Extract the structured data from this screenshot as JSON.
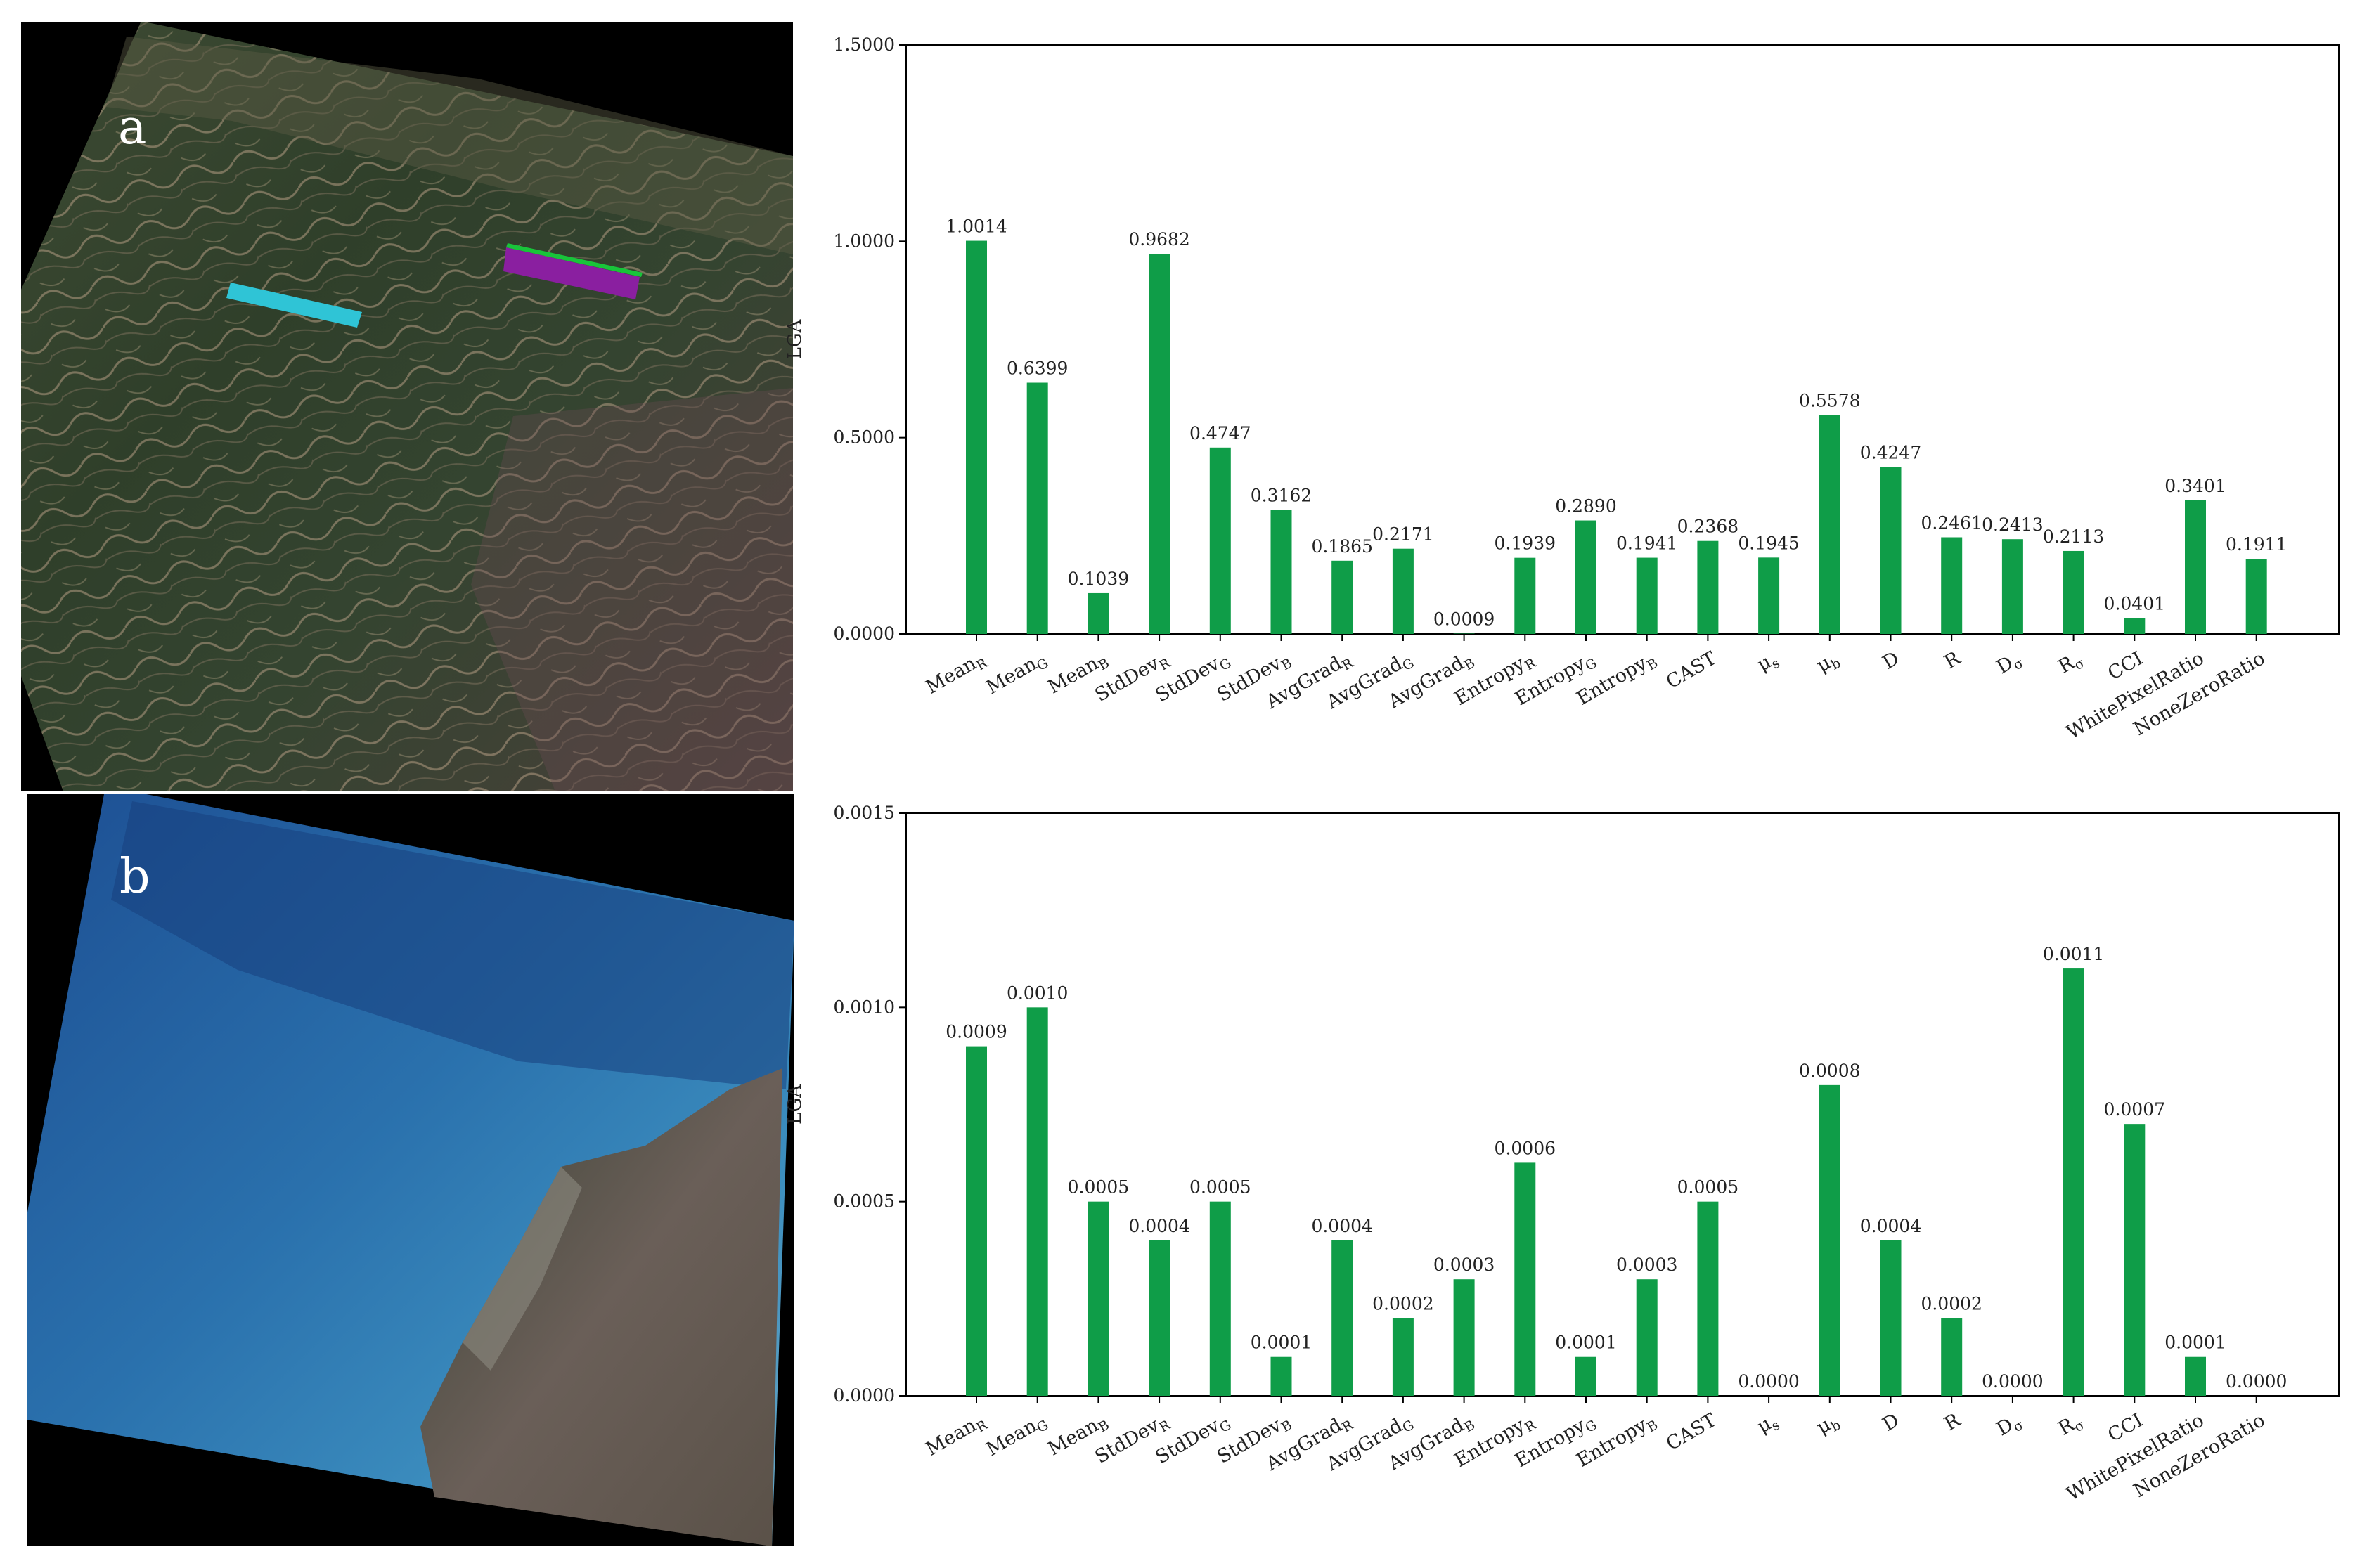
{
  "panel_a": {
    "label": "a"
  },
  "panel_b": {
    "label": "b"
  },
  "colors": {
    "bar": "#0f9d48",
    "axis": "#000000",
    "cyan_strip": "#2fc4d6",
    "magenta_strip": "#8a1fa0",
    "green_strip": "#18c43a"
  },
  "chart_data": [
    {
      "type": "bar",
      "ylabel": "LGA",
      "ylim": [
        0,
        1.5
      ],
      "yticks": [
        "0.0000",
        "0.5000",
        "1.0000",
        "1.5000"
      ],
      "categories": [
        "MeanR",
        "MeanG",
        "MeanB",
        "StdDevR",
        "StdDevG",
        "StdDevB",
        "AvgGradR",
        "AvgGradG",
        "AvgGradB",
        "EntropyR",
        "EntropyG",
        "EntropyB",
        "CAST",
        "μs",
        "μb",
        "D",
        "R",
        "Dσ",
        "Rσ",
        "CCI",
        "WhitePixelRatio",
        "NoneZeroRatio"
      ],
      "values": [
        1.0014,
        0.6399,
        0.1039,
        0.9682,
        0.4747,
        0.3162,
        0.1865,
        0.2171,
        0.0009,
        0.1939,
        0.289,
        0.1941,
        0.2368,
        0.1945,
        0.5578,
        0.4247,
        0.2461,
        0.2413,
        0.2113,
        0.0401,
        0.3401,
        0.1911
      ],
      "labels": [
        "1.0014",
        "0.6399",
        "0.1039",
        "0.9682",
        "0.4747",
        "0.3162",
        "0.1865",
        "0.2171",
        "0.0009",
        "0.1939",
        "0.2890",
        "0.1941",
        "0.2368",
        "0.1945",
        "0.5578",
        "0.4247",
        "0.2461",
        "0.2413",
        "0.2113",
        "0.0401",
        "0.3401",
        "0.1911"
      ]
    },
    {
      "type": "bar",
      "ylabel": "LGA",
      "ylim": [
        0,
        0.0015
      ],
      "yticks": [
        "0.0000",
        "0.0005",
        "0.0010",
        "0.0015"
      ],
      "categories": [
        "MeanR",
        "MeanG",
        "MeanB",
        "StdDevR",
        "StdDevG",
        "StdDevB",
        "AvgGradR",
        "AvgGradG",
        "AvgGradB",
        "EntropyR",
        "EntropyG",
        "EntropyB",
        "CAST",
        "μs",
        "μb",
        "D",
        "R",
        "Dσ",
        "Rσ",
        "CCI",
        "WhitePixelRatio",
        "NoneZeroRatio"
      ],
      "values": [
        0.0009,
        0.001,
        0.0005,
        0.0004,
        0.0005,
        0.0001,
        0.0004,
        0.0002,
        0.0003,
        0.0006,
        0.0001,
        0.0003,
        0.0005,
        0.0,
        0.0008,
        0.0004,
        0.0002,
        0.0,
        0.0011,
        0.0007,
        0.0001,
        0.0
      ],
      "labels": [
        "0.0009",
        "0.0010",
        "0.0005",
        "0.0004",
        "0.0005",
        "0.0001",
        "0.0004",
        "0.0002",
        "0.0003",
        "0.0006",
        "0.0001",
        "0.0003",
        "0.0005",
        "0.0000",
        "0.0008",
        "0.0004",
        "0.0002",
        "0.0000",
        "0.0011",
        "0.0007",
        "0.0001",
        "0.0000"
      ]
    }
  ]
}
